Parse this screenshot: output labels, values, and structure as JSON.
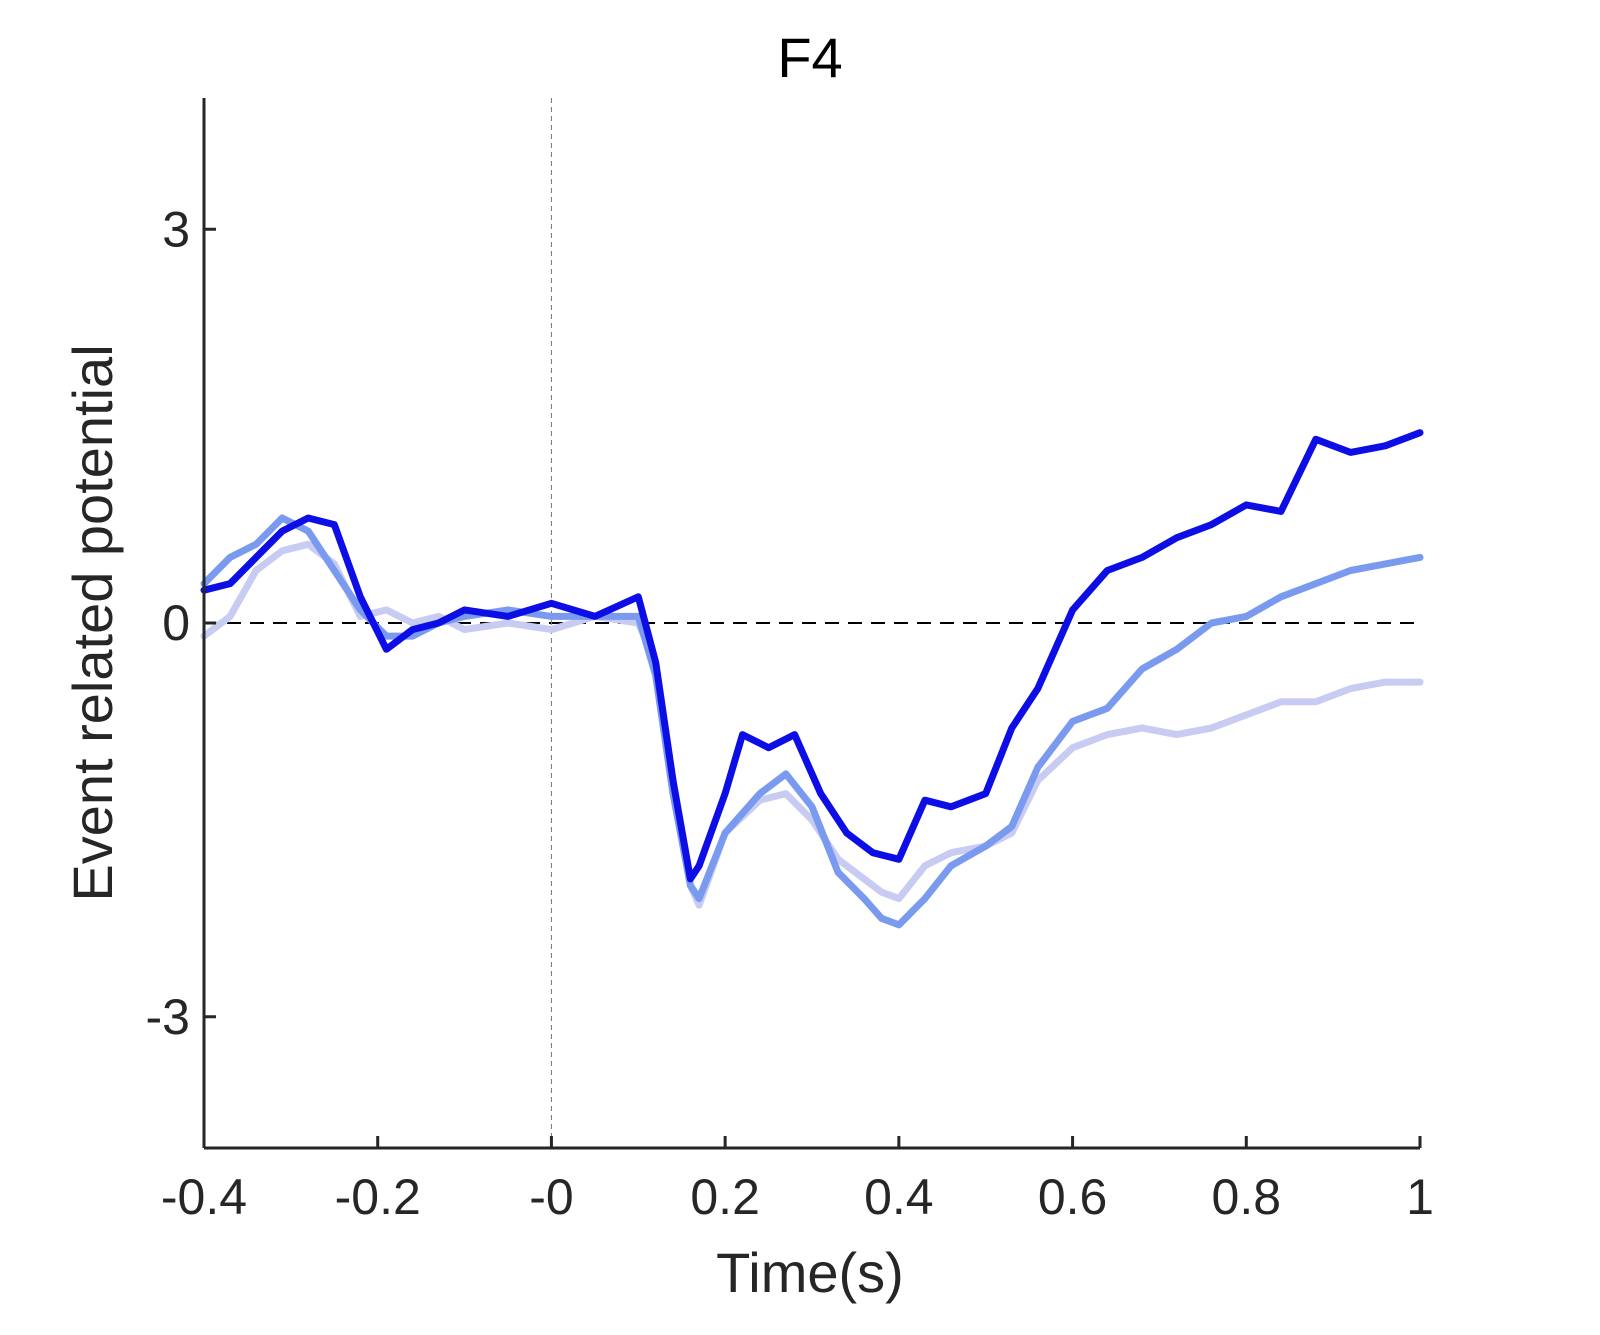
{
  "chart_data": {
    "type": "line",
    "title": "F4",
    "xlabel": "Time(s)",
    "ylabel": "Event related potential",
    "xlim": [
      -0.4,
      1.0
    ],
    "ylim": [
      -4,
      4
    ],
    "x_ticks": [
      -0.4,
      -0.2,
      0,
      0.2,
      0.4,
      0.6,
      0.8,
      1
    ],
    "x_tick_labels": [
      "-0.4",
      "-0.2",
      "-0",
      "0.2",
      "0.4",
      "0.6",
      "0.8",
      "1"
    ],
    "y_ticks": [
      -3,
      0,
      3
    ],
    "y_tick_labels": [
      "-3",
      "0",
      "3"
    ],
    "grid": false,
    "legend": false,
    "reference_lines": {
      "horizontal_y": 0,
      "vertical_x": 0
    },
    "series": [
      {
        "color": "#c8cbf2",
        "x": [
          -0.4,
          -0.37,
          -0.34,
          -0.31,
          -0.28,
          -0.25,
          -0.22,
          -0.19,
          -0.16,
          -0.13,
          -0.1,
          -0.05,
          0,
          0.05,
          0.1,
          0.12,
          0.14,
          0.16,
          0.17,
          0.2,
          0.24,
          0.27,
          0.3,
          0.33,
          0.36,
          0.38,
          0.4,
          0.43,
          0.46,
          0.5,
          0.53,
          0.56,
          0.6,
          0.64,
          0.68,
          0.72,
          0.76,
          0.8,
          0.84,
          0.88,
          0.92,
          0.96,
          1.0
        ],
        "y": [
          -0.1,
          0.05,
          0.4,
          0.55,
          0.6,
          0.45,
          0.05,
          0.1,
          0.0,
          0.05,
          -0.05,
          0.0,
          -0.05,
          0.05,
          0.0,
          -0.3,
          -1.2,
          -2.0,
          -2.15,
          -1.6,
          -1.35,
          -1.3,
          -1.5,
          -1.8,
          -1.95,
          -2.05,
          -2.1,
          -1.85,
          -1.75,
          -1.7,
          -1.6,
          -1.2,
          -0.95,
          -0.85,
          -0.8,
          -0.85,
          -0.8,
          -0.7,
          -0.6,
          -0.6,
          -0.5,
          -0.45,
          -0.45
        ]
      },
      {
        "color": "#7a9af0",
        "x": [
          -0.4,
          -0.37,
          -0.34,
          -0.31,
          -0.28,
          -0.25,
          -0.22,
          -0.19,
          -0.16,
          -0.13,
          -0.1,
          -0.05,
          0,
          0.05,
          0.1,
          0.12,
          0.14,
          0.16,
          0.17,
          0.2,
          0.24,
          0.27,
          0.3,
          0.33,
          0.36,
          0.38,
          0.4,
          0.43,
          0.46,
          0.5,
          0.53,
          0.56,
          0.6,
          0.64,
          0.68,
          0.72,
          0.76,
          0.8,
          0.84,
          0.88,
          0.92,
          0.96,
          1.0
        ],
        "y": [
          0.3,
          0.5,
          0.6,
          0.8,
          0.7,
          0.4,
          0.1,
          -0.1,
          -0.1,
          0.0,
          0.05,
          0.1,
          0.05,
          0.05,
          0.05,
          -0.4,
          -1.3,
          -2.0,
          -2.1,
          -1.6,
          -1.3,
          -1.15,
          -1.4,
          -1.9,
          -2.1,
          -2.25,
          -2.3,
          -2.1,
          -1.85,
          -1.7,
          -1.55,
          -1.1,
          -0.75,
          -0.65,
          -0.35,
          -0.2,
          0.0,
          0.05,
          0.2,
          0.3,
          0.4,
          0.45,
          0.5
        ]
      },
      {
        "color": "#0d0ee6",
        "x": [
          -0.4,
          -0.37,
          -0.34,
          -0.31,
          -0.28,
          -0.25,
          -0.22,
          -0.19,
          -0.16,
          -0.13,
          -0.1,
          -0.05,
          0,
          0.05,
          0.1,
          0.12,
          0.14,
          0.16,
          0.17,
          0.2,
          0.22,
          0.25,
          0.28,
          0.31,
          0.34,
          0.37,
          0.4,
          0.43,
          0.46,
          0.5,
          0.53,
          0.56,
          0.6,
          0.64,
          0.68,
          0.72,
          0.76,
          0.8,
          0.84,
          0.88,
          0.92,
          0.96,
          1.0
        ],
        "y": [
          0.25,
          0.3,
          0.5,
          0.7,
          0.8,
          0.75,
          0.2,
          -0.2,
          -0.05,
          0.0,
          0.1,
          0.05,
          0.15,
          0.05,
          0.2,
          -0.3,
          -1.2,
          -1.95,
          -1.85,
          -1.3,
          -0.85,
          -0.95,
          -0.85,
          -1.3,
          -1.6,
          -1.75,
          -1.8,
          -1.35,
          -1.4,
          -1.3,
          -0.8,
          -0.5,
          0.1,
          0.4,
          0.5,
          0.65,
          0.75,
          0.9,
          0.85,
          1.4,
          1.3,
          1.35,
          1.45
        ]
      }
    ]
  }
}
